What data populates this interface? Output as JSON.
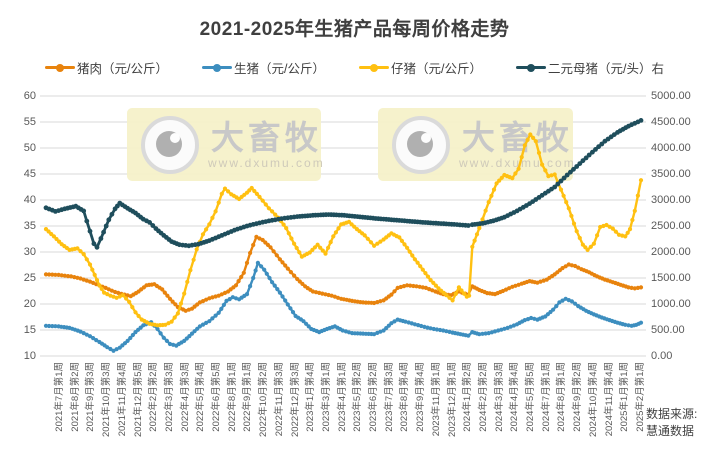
{
  "source_note": {
    "line1": "数据来源:",
    "line2": "慧通数据"
  },
  "watermark": {
    "brand": "大畜牧",
    "url": "www.dxumu.com"
  },
  "chart_data": {
    "type": "line",
    "title": "2021-2025年生猪产品每周价格走势",
    "grid": true,
    "legend_position": "top",
    "left_axis": {
      "min": 10,
      "max": 60,
      "step": 5,
      "ticks": [
        "60",
        "55",
        "50",
        "45",
        "40",
        "35",
        "30",
        "25",
        "20",
        "15",
        "10"
      ]
    },
    "right_axis": {
      "min": 0,
      "max": 5000,
      "step": 500,
      "ticks": [
        "5000.00",
        "4500.00",
        "4000.00",
        "3500.00",
        "3000.00",
        "2500.00",
        "2000.00",
        "1500.00",
        "1000.00",
        "500.00",
        "0.00"
      ]
    },
    "x_labels": [
      "2021年7月第1周",
      "2021年8月第2周",
      "2021年9月第3周",
      "2021年10月第3周",
      "2021年11月第4周",
      "2021年12月第5周",
      "2022年2月第2周",
      "2022年3月第3周",
      "2022年4月第3周",
      "2022年5月第4周",
      "2022年6月第5周",
      "2022年8月第1周",
      "2022年9月第1周",
      "2022年10月第2周",
      "2022年11月第3周",
      "2022年12月第3周",
      "2023年1月第4周",
      "2023年3月第1周",
      "2023年4月第1周",
      "2023年5月第2周",
      "2023年6月第2周",
      "2023年7月第3周",
      "2023年8月第4周",
      "2023年9月第4周",
      "2023年11月第1周",
      "2023年12月第1周",
      "2024年1月第2周",
      "2024年2月第2周",
      "2024年3月第3周",
      "2024年4月第4周",
      "2024年5月第5周",
      "2024年7月第1周",
      "2024年8月第1周",
      "2024年9月第2周",
      "2024年10月第4周",
      "2024年11月第4周",
      "2025年1月第1周",
      "2025年2月第1周"
    ],
    "series": [
      {
        "name": "猪肉（元/公斤）",
        "axis": "left",
        "color": "#E8830D",
        "width": 2.4,
        "marker": 2.1,
        "points": [
          [
            0,
            25.7
          ],
          [
            0.8,
            25.6
          ],
          [
            1.6,
            25.3
          ],
          [
            2.2,
            24.9
          ],
          [
            2.8,
            24.3
          ],
          [
            3.2,
            23.8
          ],
          [
            3.8,
            23.1
          ],
          [
            4.4,
            22.3
          ],
          [
            5,
            21.8
          ],
          [
            5.4,
            21.5
          ],
          [
            5.9,
            22.4
          ],
          [
            6.4,
            23.6
          ],
          [
            6.9,
            23.8
          ],
          [
            7.4,
            22.8
          ],
          [
            7.9,
            21
          ],
          [
            8.4,
            19.4
          ],
          [
            8.9,
            18.7
          ],
          [
            9.3,
            19.1
          ],
          [
            9.8,
            20.3
          ],
          [
            10.4,
            21.1
          ],
          [
            11,
            21.6
          ],
          [
            11.6,
            22.4
          ],
          [
            12.1,
            23.6
          ],
          [
            12.6,
            26
          ],
          [
            13,
            29.8
          ],
          [
            13.4,
            32.9
          ],
          [
            13.8,
            32.3
          ],
          [
            14.3,
            30.9
          ],
          [
            14.9,
            28.6
          ],
          [
            15.4,
            26.8
          ],
          [
            16,
            24.8
          ],
          [
            16.5,
            23.4
          ],
          [
            17,
            22.4
          ],
          [
            17.6,
            22
          ],
          [
            18.2,
            21.6
          ],
          [
            18.8,
            21
          ],
          [
            19.5,
            20.6
          ],
          [
            20.2,
            20.3
          ],
          [
            20.9,
            20.2
          ],
          [
            21.5,
            20.7
          ],
          [
            22,
            21.8
          ],
          [
            22.4,
            23.1
          ],
          [
            23,
            23.6
          ],
          [
            23.6,
            23.4
          ],
          [
            24.2,
            23.1
          ],
          [
            24.8,
            22.4
          ],
          [
            25.3,
            21.9
          ],
          [
            25.8,
            21.7
          ],
          [
            26.3,
            22.4
          ],
          [
            26.9,
            21.8
          ],
          [
            27.15,
            23.4
          ],
          [
            27.6,
            22.7
          ],
          [
            28.1,
            22.1
          ],
          [
            28.6,
            21.9
          ],
          [
            29.1,
            22.5
          ],
          [
            29.7,
            23.3
          ],
          [
            30.3,
            23.9
          ],
          [
            30.8,
            24.4
          ],
          [
            31.3,
            24.1
          ],
          [
            31.9,
            24.7
          ],
          [
            32.4,
            25.7
          ],
          [
            32.9,
            26.9
          ],
          [
            33.3,
            27.6
          ],
          [
            33.7,
            27.3
          ],
          [
            34.1,
            26.7
          ],
          [
            34.6,
            26.1
          ],
          [
            35.1,
            25.3
          ],
          [
            35.6,
            24.7
          ],
          [
            36.1,
            24.2
          ],
          [
            36.6,
            23.7
          ],
          [
            37.1,
            23.2
          ],
          [
            37.5,
            23
          ],
          [
            37.9,
            23.2
          ]
        ]
      },
      {
        "name": "生猪（元/公斤）",
        "axis": "left",
        "color": "#3D8EBF",
        "width": 2.4,
        "marker": 2.1,
        "points": [
          [
            0,
            15.8
          ],
          [
            0.8,
            15.7
          ],
          [
            1.5,
            15.4
          ],
          [
            2.2,
            14.7
          ],
          [
            2.8,
            13.8
          ],
          [
            3.4,
            12.7
          ],
          [
            3.9,
            11.7
          ],
          [
            4.3,
            11
          ],
          [
            4.7,
            11.6
          ],
          [
            5.2,
            12.9
          ],
          [
            5.7,
            14.6
          ],
          [
            6.2,
            15.9
          ],
          [
            6.7,
            16.5
          ],
          [
            7.1,
            15.2
          ],
          [
            7.5,
            13.5
          ],
          [
            7.9,
            12.3
          ],
          [
            8.3,
            12
          ],
          [
            8.8,
            12.9
          ],
          [
            9.3,
            14.3
          ],
          [
            9.8,
            15.7
          ],
          [
            10.4,
            16.7
          ],
          [
            11,
            18.3
          ],
          [
            11.5,
            20.6
          ],
          [
            11.9,
            21.3
          ],
          [
            12.3,
            20.9
          ],
          [
            12.8,
            21.9
          ],
          [
            13.2,
            25
          ],
          [
            13.5,
            27.9
          ],
          [
            13.9,
            26.6
          ],
          [
            14.4,
            24.2
          ],
          [
            14.9,
            22.2
          ],
          [
            15.4,
            19.9
          ],
          [
            15.9,
            17.7
          ],
          [
            16.4,
            16.7
          ],
          [
            16.9,
            15.2
          ],
          [
            17.4,
            14.6
          ],
          [
            17.9,
            15.2
          ],
          [
            18.4,
            15.7
          ],
          [
            18.9,
            14.9
          ],
          [
            19.5,
            14.4
          ],
          [
            20.2,
            14.3
          ],
          [
            20.9,
            14.2
          ],
          [
            21.5,
            14.9
          ],
          [
            22,
            16.3
          ],
          [
            22.4,
            17
          ],
          [
            22.9,
            16.6
          ],
          [
            23.5,
            16.1
          ],
          [
            24.1,
            15.6
          ],
          [
            24.7,
            15.2
          ],
          [
            25.3,
            14.9
          ],
          [
            25.9,
            14.5
          ],
          [
            26.4,
            14.2
          ],
          [
            26.9,
            13.9
          ],
          [
            27.15,
            14.6
          ],
          [
            27.6,
            14.2
          ],
          [
            28.2,
            14.4
          ],
          [
            28.8,
            14.9
          ],
          [
            29.4,
            15.4
          ],
          [
            30,
            16.1
          ],
          [
            30.5,
            16.9
          ],
          [
            30.9,
            17.3
          ],
          [
            31.3,
            17
          ],
          [
            31.8,
            17.6
          ],
          [
            32.3,
            18.9
          ],
          [
            32.7,
            20.3
          ],
          [
            33.1,
            21
          ],
          [
            33.5,
            20.5
          ],
          [
            33.9,
            19.6
          ],
          [
            34.4,
            18.7
          ],
          [
            34.9,
            18
          ],
          [
            35.4,
            17.4
          ],
          [
            35.9,
            16.9
          ],
          [
            36.4,
            16.4
          ],
          [
            36.9,
            16
          ],
          [
            37.3,
            15.8
          ],
          [
            37.6,
            16
          ],
          [
            37.9,
            16.4
          ]
        ]
      },
      {
        "name": "仔猪（元/公斤）",
        "axis": "left",
        "color": "#FFC011",
        "width": 2.4,
        "marker": 2.1,
        "points": [
          [
            0,
            34.4
          ],
          [
            0.5,
            33
          ],
          [
            1,
            31.5
          ],
          [
            1.5,
            30.4
          ],
          [
            2,
            30.7
          ],
          [
            2.4,
            29.6
          ],
          [
            2.8,
            27.6
          ],
          [
            3.1,
            25.6
          ],
          [
            3.4,
            23.6
          ],
          [
            3.7,
            22.2
          ],
          [
            4.1,
            21.6
          ],
          [
            4.5,
            21.2
          ],
          [
            4.9,
            21.7
          ],
          [
            5.3,
            20.4
          ],
          [
            5.7,
            18.4
          ],
          [
            6.1,
            17
          ],
          [
            6.6,
            16.2
          ],
          [
            7.1,
            15.9
          ],
          [
            7.6,
            16
          ],
          [
            8,
            16.6
          ],
          [
            8.4,
            18.2
          ],
          [
            8.8,
            22
          ],
          [
            9.2,
            26.5
          ],
          [
            9.6,
            30.5
          ],
          [
            10,
            33.4
          ],
          [
            10.4,
            35.3
          ],
          [
            10.8,
            37.8
          ],
          [
            11.2,
            41.2
          ],
          [
            11.4,
            42.2
          ],
          [
            11.8,
            41.1
          ],
          [
            12.3,
            40.2
          ],
          [
            12.8,
            41.4
          ],
          [
            13.1,
            42.3
          ],
          [
            13.6,
            40.6
          ],
          [
            14.2,
            38.4
          ],
          [
            14.8,
            36.6
          ],
          [
            15.3,
            34.6
          ],
          [
            15.8,
            31.6
          ],
          [
            16.3,
            29.1
          ],
          [
            16.8,
            29.9
          ],
          [
            17.3,
            31.4
          ],
          [
            17.8,
            29.7
          ],
          [
            18.3,
            33
          ],
          [
            18.8,
            35.3
          ],
          [
            19.3,
            35.8
          ],
          [
            19.8,
            34.4
          ],
          [
            20.3,
            33.2
          ],
          [
            20.9,
            31.2
          ],
          [
            21.5,
            32.4
          ],
          [
            22,
            33.6
          ],
          [
            22.5,
            32.8
          ],
          [
            23,
            30.8
          ],
          [
            23.5,
            28.6
          ],
          [
            24,
            26.6
          ],
          [
            24.5,
            24.6
          ],
          [
            25,
            23
          ],
          [
            25.5,
            21.7
          ],
          [
            25.9,
            20.7
          ],
          [
            26.3,
            23.2
          ],
          [
            26.8,
            21.4
          ],
          [
            26.95,
            21.6
          ],
          [
            27.15,
            31
          ],
          [
            27.6,
            34.6
          ],
          [
            28.2,
            39.6
          ],
          [
            28.7,
            43.2
          ],
          [
            29.2,
            44.8
          ],
          [
            29.7,
            44.2
          ],
          [
            30.1,
            46
          ],
          [
            30.5,
            50.5
          ],
          [
            30.85,
            52.6
          ],
          [
            31.2,
            51.3
          ],
          [
            31.6,
            46.8
          ],
          [
            32,
            44.6
          ],
          [
            32.4,
            44.9
          ],
          [
            32.8,
            42
          ],
          [
            33.3,
            38.4
          ],
          [
            33.8,
            34
          ],
          [
            34.2,
            31.4
          ],
          [
            34.5,
            30.4
          ],
          [
            34.9,
            31.6
          ],
          [
            35.3,
            34.8
          ],
          [
            35.7,
            35.2
          ],
          [
            36.1,
            34.5
          ],
          [
            36.5,
            33.3
          ],
          [
            36.9,
            33
          ],
          [
            37.2,
            34.4
          ],
          [
            37.5,
            37.9
          ],
          [
            37.9,
            43.8
          ]
        ]
      },
      {
        "name": "二元母猪（元/头）右",
        "axis": "right",
        "color": "#1F4E5C",
        "width": 2.8,
        "marker": 2.4,
        "points": [
          [
            0,
            2850
          ],
          [
            0.6,
            2780
          ],
          [
            1.2,
            2830
          ],
          [
            1.9,
            2880
          ],
          [
            2.4,
            2790
          ],
          [
            2.8,
            2400
          ],
          [
            3.05,
            2160
          ],
          [
            3.25,
            2090
          ],
          [
            3.5,
            2260
          ],
          [
            4,
            2620
          ],
          [
            4.4,
            2830
          ],
          [
            4.7,
            2940
          ],
          [
            5.2,
            2840
          ],
          [
            5.7,
            2750
          ],
          [
            6.2,
            2630
          ],
          [
            6.6,
            2570
          ],
          [
            7,
            2450
          ],
          [
            7.5,
            2320
          ],
          [
            8,
            2200
          ],
          [
            8.5,
            2140
          ],
          [
            9.1,
            2120
          ],
          [
            9.7,
            2150
          ],
          [
            10.4,
            2220
          ],
          [
            11.2,
            2320
          ],
          [
            12,
            2420
          ],
          [
            12.8,
            2500
          ],
          [
            13.6,
            2560
          ],
          [
            14.4,
            2610
          ],
          [
            15.2,
            2650
          ],
          [
            16,
            2680
          ],
          [
            17,
            2705
          ],
          [
            18,
            2720
          ],
          [
            19,
            2705
          ],
          [
            20,
            2675
          ],
          [
            21,
            2645
          ],
          [
            22,
            2620
          ],
          [
            23,
            2595
          ],
          [
            24,
            2570
          ],
          [
            25,
            2550
          ],
          [
            26,
            2530
          ],
          [
            26.9,
            2510
          ],
          [
            27.15,
            2525
          ],
          [
            27.8,
            2550
          ],
          [
            28.5,
            2600
          ],
          [
            29.2,
            2670
          ],
          [
            30,
            2790
          ],
          [
            30.8,
            2930
          ],
          [
            31.6,
            3090
          ],
          [
            32.4,
            3250
          ],
          [
            33.2,
            3480
          ],
          [
            34,
            3700
          ],
          [
            34.8,
            3920
          ],
          [
            35.6,
            4130
          ],
          [
            36.4,
            4300
          ],
          [
            37.1,
            4420
          ],
          [
            37.9,
            4530
          ]
        ]
      }
    ]
  }
}
